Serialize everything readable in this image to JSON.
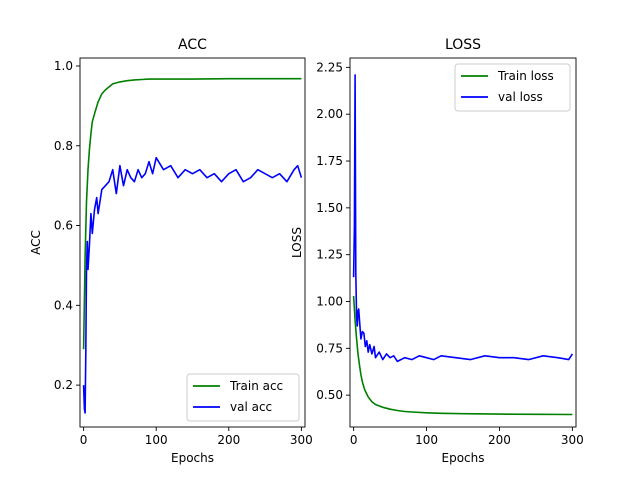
{
  "chart_data": [
    {
      "type": "line",
      "title": "ACC",
      "xlabel": "Epochs",
      "ylabel": "ACC",
      "xlim": [
        -5,
        305
      ],
      "ylim": [
        0.095,
        1.02
      ],
      "xticks": [
        0,
        100,
        200,
        300
      ],
      "yticks": [
        0.2,
        0.4,
        0.6,
        0.8,
        1.0
      ],
      "xtick_labels": [
        "0",
        "100",
        "200",
        "300"
      ],
      "ytick_labels": [
        "0.2",
        "0.4",
        "0.6",
        "0.8",
        "1.0"
      ],
      "grid": false,
      "legend": "bottom-right",
      "series": [
        {
          "name": "Train acc",
          "color": "#008000",
          "x": [
            0,
            2,
            4,
            6,
            8,
            10,
            12,
            15,
            20,
            25,
            30,
            40,
            50,
            60,
            70,
            80,
            90,
            100,
            120,
            150,
            200,
            250,
            300
          ],
          "y": [
            0.29,
            0.52,
            0.66,
            0.74,
            0.79,
            0.83,
            0.86,
            0.88,
            0.91,
            0.93,
            0.94,
            0.955,
            0.96,
            0.963,
            0.965,
            0.966,
            0.967,
            0.967,
            0.967,
            0.967,
            0.968,
            0.968,
            0.968
          ]
        },
        {
          "name": "val acc",
          "color": "#0000ff",
          "x": [
            0,
            1,
            2,
            3,
            4,
            5,
            6,
            8,
            10,
            12,
            15,
            18,
            20,
            25,
            30,
            35,
            40,
            45,
            50,
            55,
            60,
            65,
            70,
            75,
            80,
            85,
            90,
            95,
            100,
            110,
            120,
            130,
            140,
            150,
            160,
            170,
            180,
            190,
            200,
            210,
            220,
            230,
            240,
            250,
            260,
            270,
            280,
            290,
            295,
            300
          ],
          "y": [
            0.2,
            0.14,
            0.13,
            0.28,
            0.49,
            0.56,
            0.49,
            0.55,
            0.63,
            0.58,
            0.64,
            0.67,
            0.63,
            0.69,
            0.7,
            0.71,
            0.74,
            0.68,
            0.75,
            0.7,
            0.74,
            0.72,
            0.71,
            0.74,
            0.72,
            0.73,
            0.76,
            0.73,
            0.77,
            0.74,
            0.75,
            0.72,
            0.74,
            0.73,
            0.74,
            0.72,
            0.73,
            0.71,
            0.73,
            0.74,
            0.71,
            0.72,
            0.74,
            0.73,
            0.72,
            0.73,
            0.71,
            0.74,
            0.75,
            0.72
          ]
        }
      ]
    },
    {
      "type": "line",
      "title": "LOSS",
      "xlabel": "Epochs",
      "ylabel": "LOSS",
      "xlim": [
        -5,
        305
      ],
      "ylim": [
        0.33,
        2.3
      ],
      "xticks": [
        0,
        100,
        200,
        300
      ],
      "yticks": [
        0.5,
        0.75,
        1.0,
        1.25,
        1.5,
        1.75,
        2.0,
        2.25
      ],
      "xtick_labels": [
        "0",
        "100",
        "200",
        "300"
      ],
      "ytick_labels": [
        "0.50",
        "0.75",
        "1.00",
        "1.25",
        "1.50",
        "1.75",
        "2.00",
        "2.25"
      ],
      "grid": false,
      "legend": "top-right",
      "series": [
        {
          "name": "Train loss",
          "color": "#008000",
          "x": [
            0,
            2,
            4,
            6,
            8,
            10,
            12,
            15,
            20,
            25,
            30,
            40,
            50,
            60,
            70,
            80,
            100,
            120,
            150,
            200,
            250,
            300
          ],
          "y": [
            1.03,
            0.9,
            0.8,
            0.72,
            0.66,
            0.61,
            0.57,
            0.53,
            0.49,
            0.465,
            0.45,
            0.435,
            0.425,
            0.418,
            0.413,
            0.41,
            0.406,
            0.403,
            0.401,
            0.399,
            0.398,
            0.397
          ]
        },
        {
          "name": "val loss",
          "color": "#0000ff",
          "x": [
            0,
            1,
            2,
            3,
            4,
            5,
            6,
            7,
            8,
            10,
            12,
            14,
            16,
            18,
            20,
            22,
            25,
            28,
            30,
            35,
            40,
            45,
            50,
            55,
            60,
            70,
            80,
            90,
            100,
            110,
            120,
            140,
            160,
            180,
            200,
            220,
            240,
            260,
            280,
            295,
            300
          ],
          "y": [
            1.13,
            1.4,
            2.21,
            1.15,
            0.92,
            0.87,
            0.95,
            0.96,
            0.9,
            0.8,
            0.84,
            0.83,
            0.76,
            0.79,
            0.73,
            0.77,
            0.72,
            0.76,
            0.7,
            0.73,
            0.69,
            0.72,
            0.7,
            0.71,
            0.68,
            0.7,
            0.69,
            0.71,
            0.7,
            0.69,
            0.71,
            0.7,
            0.69,
            0.71,
            0.7,
            0.7,
            0.69,
            0.71,
            0.7,
            0.69,
            0.72
          ]
        }
      ]
    }
  ]
}
